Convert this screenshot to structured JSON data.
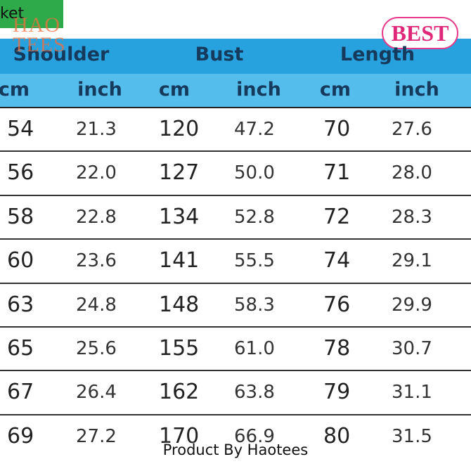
{
  "label": "ket",
  "logo": "HAO TEES",
  "badge": "BEST",
  "table": {
    "groups": [
      "Shoulder",
      "Bust",
      "Length"
    ],
    "units": [
      "cm",
      "inch",
      "cm",
      "inch",
      "cm",
      "inch"
    ],
    "rows": [
      [
        "54",
        "21.3",
        "120",
        "47.2",
        "70",
        "27.6"
      ],
      [
        "56",
        "22.0",
        "127",
        "50.0",
        "71",
        "28.0"
      ],
      [
        "58",
        "22.8",
        "134",
        "52.8",
        "72",
        "28.3"
      ],
      [
        "60",
        "23.6",
        "141",
        "55.5",
        "74",
        "29.1"
      ],
      [
        "63",
        "24.8",
        "148",
        "58.3",
        "76",
        "29.9"
      ],
      [
        "65",
        "25.6",
        "155",
        "61.0",
        "78",
        "30.7"
      ],
      [
        "67",
        "26.4",
        "162",
        "63.8",
        "79",
        "31.1"
      ],
      [
        "69",
        "27.2",
        "170",
        "66.9",
        "80",
        "31.5"
      ]
    ]
  },
  "footer": "Product By Haotees"
}
